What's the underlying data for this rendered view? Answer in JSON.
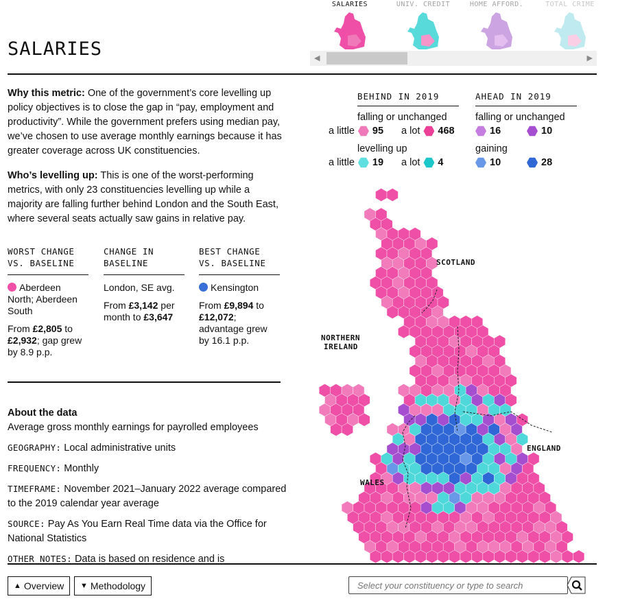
{
  "metric_tabs": [
    {
      "label": "SALARIES",
      "palette": [
        "#ef4fa6",
        "#f07ab9"
      ],
      "active": true
    },
    {
      "label": "UNIV. CREDIT",
      "palette": [
        "#47d6d6",
        "#f48ac4"
      ],
      "active": false
    },
    {
      "label": "HOME AFFORD.",
      "palette": [
        "#c69bde",
        "#e0b8ee"
      ],
      "active": false
    },
    {
      "label": "TOTAL CRIME",
      "palette": [
        "#8cd9e3",
        "#f6a8d2"
      ],
      "active": false
    }
  ],
  "title": "SALARIES",
  "why": {
    "label": "Why this metric:",
    "text": " One of the government’s core levelling up policy objectives is to close the gap in “pay, employment and productivity”. While the government prefers using median pay, we’ve chosen to use average monthly earnings because it has greater coverage across UK constituencies."
  },
  "who": {
    "label": "Who’s levelling up:",
    "text": " This is one of the worst-performing metrics, with only 23 constituencies levelling up while a majority are falling further behind London and the South East, where several seats actually saw gains in relative pay."
  },
  "stats": {
    "worst": {
      "heading": "WORST CHANGE VS. BASELINE",
      "name": "Aberdeen North; Aberdeen South",
      "color": "#ef4fa6",
      "from_text": "From ",
      "v1": "£2,805",
      "mid": " to ",
      "v2": "£2,932",
      "tail": "; gap grew by 8.9 p.p."
    },
    "change": {
      "heading": "CHANGE IN BASELINE",
      "name": "London, SE avg.",
      "from_text": "From ",
      "v1": "£3,142",
      "mid": " per month to ",
      "v2": "£3,647"
    },
    "best": {
      "heading": "BEST CHANGE VS. BASELINE",
      "name": "Kensington",
      "color": "#3a6fd8",
      "from_text": "From ",
      "v1": "£9,894",
      "mid": " to ",
      "v2": "£12,072",
      "tail": "; advantage grew by 16.1 p.p."
    }
  },
  "about": {
    "heading": "About the data",
    "desc": "Average gross monthly earnings for payrolled employees",
    "rows": [
      {
        "key": "GEOGRAPHY:",
        "val": " Local administrative units"
      },
      {
        "key": "FREQUENCY:",
        "val": " Monthly"
      },
      {
        "key": "TIMEFRAME:",
        "val": " November 2021–January 2022 average compared to the 2019 calendar year average"
      },
      {
        "key": "SOURCE:",
        "val": " Pay As You Earn Real Time data via the Office for National Statistics"
      },
      {
        "key": "OTHER NOTES:",
        "val": " Data is based on residence and is"
      }
    ]
  },
  "legend": {
    "behind": {
      "heading": "BEHIND IN 2019",
      "falling": "falling or unchanged",
      "levelling": "levelling up",
      "items": [
        {
          "label": "a little",
          "count": "95",
          "color": "#f07ab9"
        },
        {
          "label": "a lot",
          "count": "468",
          "color": "#ec3f98"
        },
        {
          "label": "a little",
          "count": "19",
          "color": "#5fdfe0"
        },
        {
          "label": "a lot",
          "count": "4",
          "color": "#1cc6c9"
        }
      ]
    },
    "ahead": {
      "heading": "AHEAD IN 2019",
      "falling": "falling or unchanged",
      "gaining": "gaining",
      "items": [
        {
          "count": "16",
          "color": "#c47ee0"
        },
        {
          "count": "10",
          "color": "#a54fd0"
        },
        {
          "count": "10",
          "color": "#6a98e8"
        },
        {
          "count": "28",
          "color": "#2f68d6"
        }
      ]
    }
  },
  "map_labels": {
    "scotland": "SCOTLAND",
    "northern_ireland_1": "NORTHERN",
    "northern_ireland_2": "IRELAND",
    "england": "ENGLAND",
    "wales": "WALES"
  },
  "map_colors": {
    "main": "#ef4fa6",
    "light": "#f27cbb",
    "cyan": "#4fd8da",
    "blue": "#2f68d6",
    "purple": "#a54fd0",
    "lightblue": "#6a98e8"
  },
  "footer": {
    "overview": "Overview",
    "methodology": "Methodology",
    "search_placeholder": "Select your constituency or type to search"
  }
}
